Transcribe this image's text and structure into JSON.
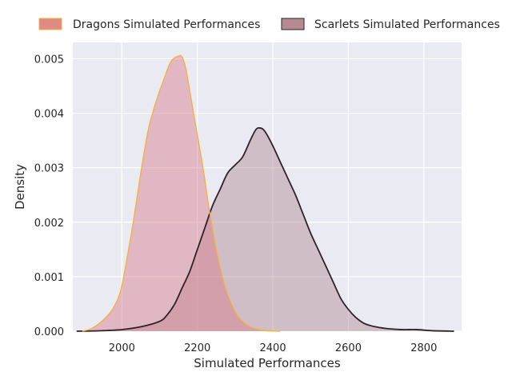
{
  "chart_data": {
    "type": "area",
    "xlabel": "Simulated Performances",
    "ylabel": "Density",
    "xlim": [
      1870,
      2900
    ],
    "ylim": [
      0,
      0.0053
    ],
    "x_ticks": [
      2000,
      2200,
      2400,
      2600,
      2800
    ],
    "y_ticks": [
      0.0,
      0.001,
      0.002,
      0.003,
      0.004,
      0.005
    ],
    "grid": true,
    "legend_position": "top-center, above plot",
    "series": [
      {
        "name": "Dragons Simulated Performances",
        "fill_color": "#d67a8a",
        "line_color": "#f5b03a",
        "legend_color": "#e08a86",
        "x": [
          1895,
          1920,
          1950,
          1975,
          1995,
          2010,
          2030,
          2050,
          2070,
          2090,
          2110,
          2130,
          2150,
          2160,
          2170,
          2185,
          2200,
          2215,
          2230,
          2250,
          2270,
          2290,
          2310,
          2340,
          2380,
          2420
        ],
        "y": [
          0.0,
          5e-05,
          0.0002,
          0.0004,
          0.0007,
          0.0012,
          0.002,
          0.0029,
          0.0037,
          0.0042,
          0.0046,
          0.00495,
          0.00505,
          0.00503,
          0.0048,
          0.0042,
          0.0036,
          0.003,
          0.0023,
          0.0015,
          0.0009,
          0.0005,
          0.00025,
          8e-05,
          1e-05,
          0.0
        ]
      },
      {
        "name": "Scarlets Simulated Performances",
        "fill_color": "#b08a93",
        "line_color": "#2d2328",
        "legend_color": "#b58a91",
        "x": [
          1880,
          1950,
          2000,
          2050,
          2100,
          2120,
          2140,
          2160,
          2180,
          2200,
          2220,
          2240,
          2260,
          2280,
          2300,
          2320,
          2340,
          2355,
          2365,
          2375,
          2385,
          2400,
          2420,
          2440,
          2460,
          2480,
          2500,
          2520,
          2540,
          2560,
          2580,
          2600,
          2620,
          2640,
          2660,
          2680,
          2700,
          2740,
          2780,
          2820,
          2880
        ],
        "y": [
          0.0,
          1e-05,
          3e-05,
          8e-05,
          0.00018,
          0.0003,
          0.0005,
          0.0008,
          0.0011,
          0.0015,
          0.0019,
          0.0023,
          0.0026,
          0.0029,
          0.00305,
          0.0032,
          0.0035,
          0.0037,
          0.00373,
          0.0037,
          0.0036,
          0.0034,
          0.0031,
          0.0028,
          0.0025,
          0.00215,
          0.0018,
          0.0015,
          0.0012,
          0.0009,
          0.0006,
          0.0004,
          0.00025,
          0.00015,
          0.0001,
          7e-05,
          5e-05,
          3e-05,
          3e-05,
          1e-05,
          0.0
        ]
      }
    ]
  }
}
